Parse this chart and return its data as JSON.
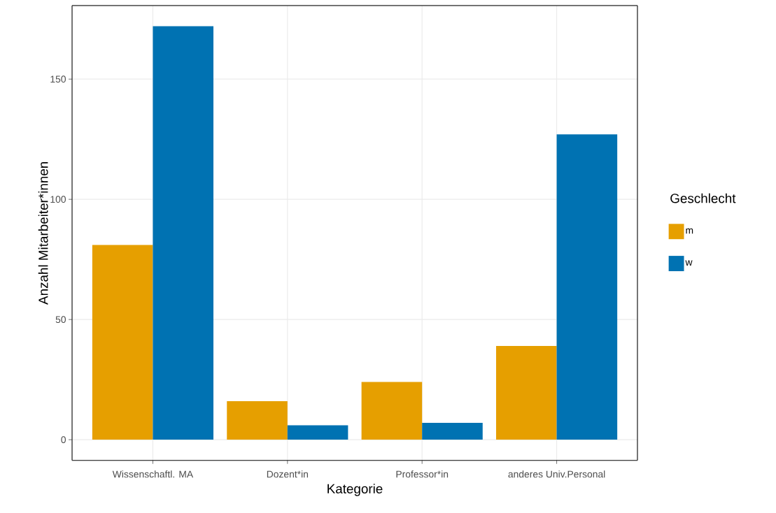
{
  "chart_data": {
    "type": "bar",
    "xlabel": "Kategorie",
    "ylabel": "Anzahl Mitarbeiter*innen",
    "legend_title": "Geschlecht",
    "categories": [
      "Wissenschaftl. MA",
      "Dozent*in",
      "Professor*in",
      "anderes Univ.Personal"
    ],
    "series": [
      {
        "name": "m",
        "color": "#e69f00",
        "values": [
          81,
          16,
          24,
          39
        ]
      },
      {
        "name": "w",
        "color": "#0072b2",
        "values": [
          172,
          6,
          7,
          127
        ]
      }
    ],
    "ylim": [
      -8.6,
      180.6
    ],
    "yticks": [
      0,
      50,
      100,
      150
    ],
    "grid": true,
    "legend": "right"
  }
}
